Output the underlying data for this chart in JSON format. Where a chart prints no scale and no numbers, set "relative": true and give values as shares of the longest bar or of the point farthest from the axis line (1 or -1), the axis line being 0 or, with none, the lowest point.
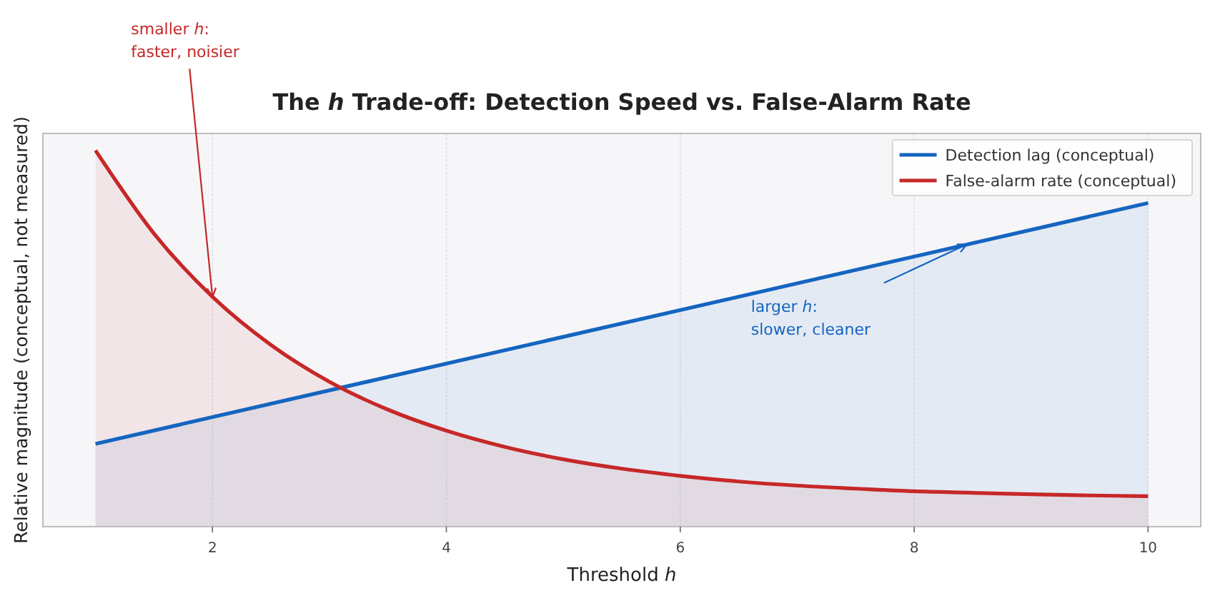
{
  "chart_data": {
    "type": "area",
    "title": "The h Trade-off: Detection Speed vs. False-Alarm Rate",
    "xlabel": "Threshold h",
    "ylabel": "Relative magnitude (conceptual, not measured)",
    "relative": true,
    "xlim": [
      0.55,
      10.45
    ],
    "xticks": [
      2,
      4,
      6,
      8,
      10
    ],
    "grid": "x",
    "legend": "top right",
    "series": [
      {
        "name": "Detection lag (conceptual)",
        "color": "#1565c0",
        "x": [
          1,
          10
        ],
        "values": [
          0.22,
          0.86
        ]
      },
      {
        "name": "False-alarm rate (conceptual)",
        "color": "#c62828",
        "x": [
          1,
          1.5,
          2,
          2.5,
          3,
          3.5,
          4,
          4.5,
          5,
          5.5,
          6,
          6.5,
          7,
          7.5,
          8,
          8.5,
          9,
          9.5,
          10
        ],
        "values": [
          1,
          0.779,
          0.611,
          0.483,
          0.385,
          0.311,
          0.255,
          0.212,
          0.179,
          0.154,
          0.135,
          0.12,
          0.109,
          0.101,
          0.094,
          0.09,
          0.086,
          0.083,
          0.081
        ]
      }
    ],
    "annotations": [
      {
        "text": "smaller h:\nfaster, noisier",
        "x": 2,
        "y": 0.61
      },
      {
        "text": "larger h:\nslower, cleaner",
        "x": 8.45,
        "y": 0.75
      }
    ]
  }
}
